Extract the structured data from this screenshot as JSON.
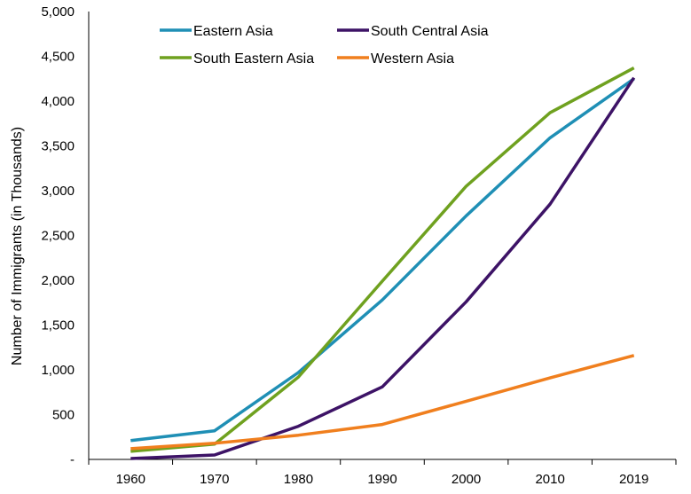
{
  "chart_data": {
    "type": "line",
    "title": "",
    "xlabel": "",
    "ylabel": "Number of Immigrants (in Thousands)",
    "ylim": [
      0,
      5000
    ],
    "grid": false,
    "legend_position": "top",
    "x": [
      "1960",
      "1970",
      "1980",
      "1990",
      "2000",
      "2010",
      "2019"
    ],
    "yticks": [
      "-",
      "500",
      "1,000",
      "1,500",
      "2,000",
      "2,500",
      "3,000",
      "3,500",
      "4,000",
      "4,500",
      "5,000"
    ],
    "series": [
      {
        "name": "Eastern Asia",
        "color": "#1F8FB5",
        "values": [
          210,
          320,
          970,
          1780,
          2720,
          3590,
          4250
        ]
      },
      {
        "name": "South Central Asia",
        "color": "#3D1366",
        "values": [
          10,
          50,
          370,
          810,
          1760,
          2850,
          4260
        ]
      },
      {
        "name": "South Eastern Asia",
        "color": "#6FA11F",
        "values": [
          90,
          170,
          920,
          1990,
          3050,
          3870,
          4370
        ]
      },
      {
        "name": "Western Asia",
        "color": "#F07F1E",
        "values": [
          120,
          180,
          270,
          390,
          650,
          910,
          1160
        ]
      }
    ]
  }
}
